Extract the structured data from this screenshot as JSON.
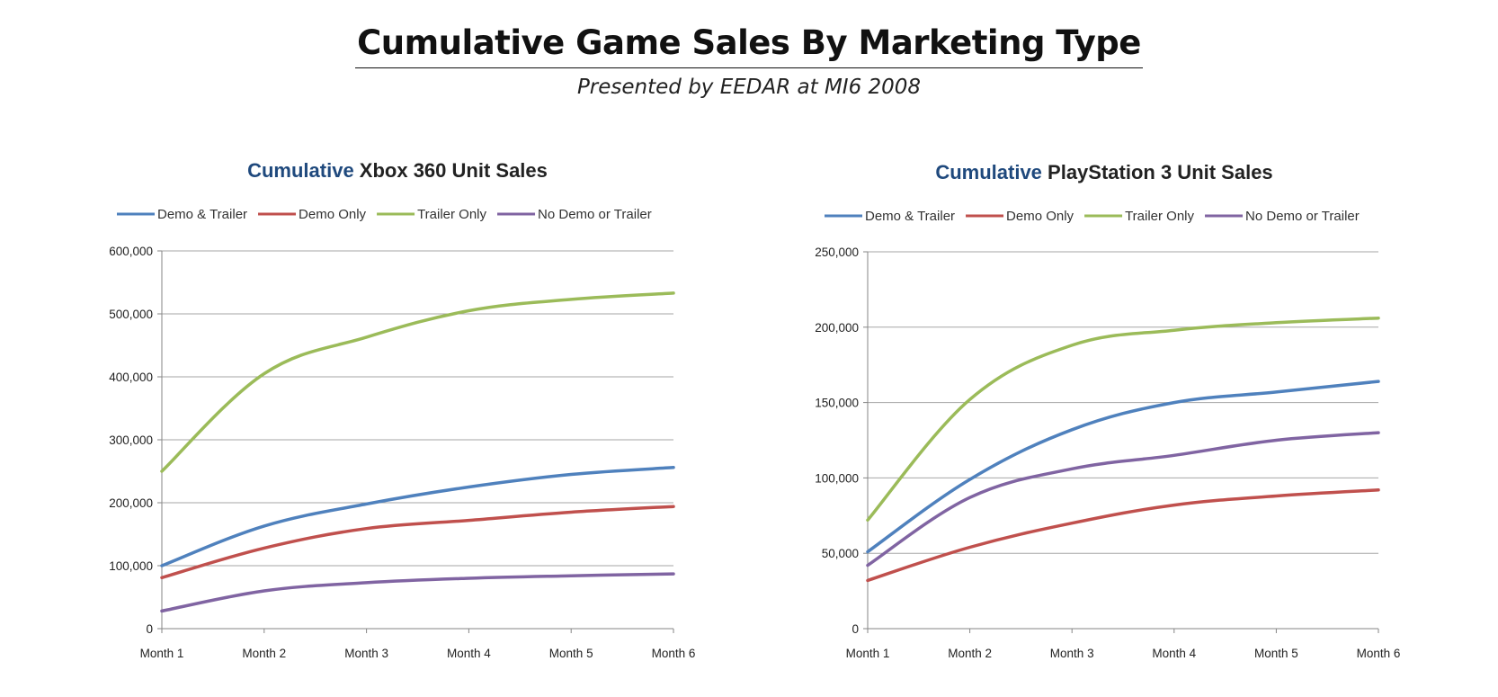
{
  "header": {
    "title": "Cumulative Game Sales By Marketing Type",
    "subtitle": "Presented by EEDAR at MI6 2008"
  },
  "colors": {
    "Demo & Trailer": "#4f81bd",
    "Demo Only": "#c0504d",
    "Trailer Only": "#9bbb59",
    "No Demo or Trailer": "#8064a2",
    "title_accent": "#1f497d"
  },
  "chart_data": [
    {
      "type": "line",
      "title_prefix": "Cumulative",
      "title_rest": "Xbox 360 Unit Sales",
      "categories": [
        "Month 1",
        "Month 2",
        "Month 3",
        "Month 4",
        "Month 5",
        "Month 6"
      ],
      "yticks": [
        "0",
        "100,000",
        "200,000",
        "300,000",
        "400,000",
        "500,000",
        "600,000"
      ],
      "ylim": [
        0,
        600000
      ],
      "legend_position": "top",
      "grid": true,
      "series": [
        {
          "name": "Demo & Trailer",
          "values": [
            100000,
            163000,
            198000,
            225000,
            245000,
            256000
          ]
        },
        {
          "name": "Demo Only",
          "values": [
            81000,
            128000,
            159000,
            172000,
            185000,
            194000
          ]
        },
        {
          "name": "Trailer Only",
          "values": [
            250000,
            405000,
            463000,
            505000,
            523000,
            533000
          ]
        },
        {
          "name": "No Demo or Trailer",
          "values": [
            28000,
            60000,
            73000,
            80000,
            84000,
            87000
          ]
        }
      ]
    },
    {
      "type": "line",
      "title_prefix": "Cumulative",
      "title_rest": "PlayStation 3 Unit Sales",
      "categories": [
        "Month 1",
        "Month 2",
        "Month 3",
        "Month 4",
        "Month 5",
        "Month 6"
      ],
      "yticks": [
        "0",
        "50,000",
        "100,000",
        "150,000",
        "200,000",
        "250,000"
      ],
      "ylim": [
        0,
        250000
      ],
      "legend_position": "top",
      "grid": true,
      "series": [
        {
          "name": "Demo & Trailer",
          "values": [
            51000,
            99000,
            132000,
            150000,
            157000,
            164000
          ]
        },
        {
          "name": "Demo Only",
          "values": [
            32000,
            54000,
            70000,
            82000,
            88000,
            92000
          ]
        },
        {
          "name": "Trailer Only",
          "values": [
            72000,
            152000,
            188000,
            198000,
            203000,
            206000
          ]
        },
        {
          "name": "No Demo or Trailer",
          "values": [
            42000,
            87000,
            106000,
            115000,
            125000,
            130000
          ]
        }
      ]
    }
  ]
}
